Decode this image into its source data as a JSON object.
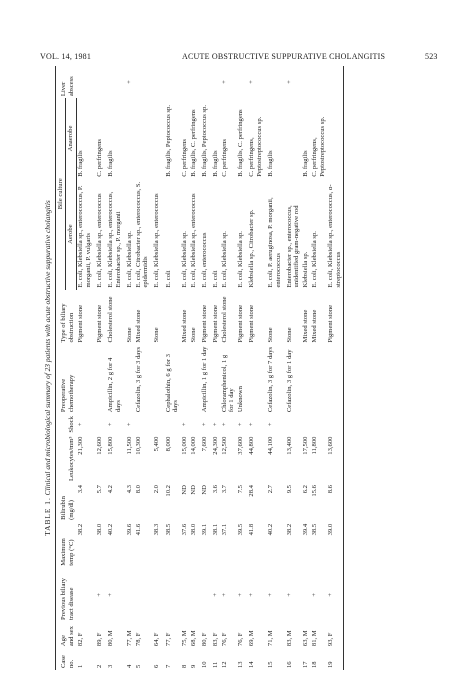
{
  "header": {
    "left": "VOL. 14, 1981",
    "center": "ACUTE OBSTRUCTIVE SUPPURATIVE CHOLANGITIS",
    "page": "523"
  },
  "table": {
    "label": "TABLE 1.",
    "title": "Clinical and microbiological summary of 23 patients with acute obstructive suppurative cholangitis",
    "columns": {
      "case": "Case no.",
      "age_sex": "Age and sex",
      "previous": "Previous biliary tract disease",
      "temp": "Maximum temp (°C)",
      "bili": "Bilirubin (mg/dl)",
      "leuko": "Leukocytes/mm³",
      "shock": "Shock",
      "chemo": "Preoperative chemotherapy",
      "obstruction": "Type of biliary obstruction",
      "bile_culture": "Bile culture",
      "aerobe": "Aerobe",
      "anaerobe": "Anaerobe",
      "liver": "Liver abscess"
    },
    "rows": [
      {
        "case": "1",
        "age": "82, F",
        "prev": "",
        "temp": "38.2",
        "bili": "3.4",
        "leuko": "21,300",
        "shock": "+",
        "chemo": "",
        "obs": "Pigment stone",
        "aerobe": "E. coli, Klebsiella sp., enterococcus, P. morganii, P. vulgaris",
        "anaerobe": "B. fragilis",
        "liver": ""
      },
      {
        "case": "2",
        "age": "89, F",
        "prev": "+",
        "temp": "38.0",
        "bili": "5.7",
        "leuko": "12,600",
        "shock": "",
        "chemo": "",
        "obs": "Pigment stone",
        "aerobe": "E. coli, Klebsiella sp., enterococcus",
        "anaerobe": "C. perfringens",
        "liver": ""
      },
      {
        "case": "3",
        "age": "80, M",
        "prev": "+",
        "temp": "40.2",
        "bili": "4.2",
        "leuko": "15,800",
        "shock": "+",
        "chemo": "Ampicillin, 2 g for 4 days",
        "obs": "Cholesterol stone",
        "aerobe": "E. coli, Klebsiella sp., enterococcus, Enterobacter sp., P. morganii",
        "anaerobe": "B. fragilis",
        "liver": ""
      },
      {
        "case": "4",
        "age": "77, M",
        "prev": "",
        "temp": "39.6",
        "bili": "4.3",
        "leuko": "11,500",
        "shock": "+",
        "chemo": "",
        "obs": "Stone",
        "aerobe": "E. coli, Klebsiella sp.",
        "anaerobe": "",
        "liver": "+"
      },
      {
        "case": "5",
        "age": "78, F",
        "prev": "",
        "temp": "41.6",
        "bili": "8.0",
        "leuko": "10,300",
        "shock": "",
        "chemo": "Cefazolin, 3 g for 3 days",
        "obs": "Mixed stone",
        "aerobe": "E. coli, Citrobacter sp., enterococcus, S. epidermidis",
        "anaerobe": "",
        "liver": ""
      },
      {
        "case": "6",
        "age": "64, F",
        "prev": "",
        "temp": "38.3",
        "bili": "2.0",
        "leuko": "5,400",
        "shock": "",
        "chemo": "",
        "obs": "Stone",
        "aerobe": "E. coli, Klebsiella sp., enterococcus",
        "anaerobe": "",
        "liver": ""
      },
      {
        "case": "7",
        "age": "77, F",
        "prev": "",
        "temp": "38.5",
        "bili": "10.2",
        "leuko": "8,000",
        "shock": "",
        "chemo": "Cephalothin, 6 g for 3 days",
        "obs": "",
        "aerobe": "E. coli",
        "anaerobe": "B. fragilis, Peptococcus sp.",
        "liver": ""
      },
      {
        "case": "8",
        "age": "75, M",
        "prev": "",
        "temp": "37.6",
        "bili": "ND",
        "leuko": "15,000",
        "shock": "+",
        "chemo": "",
        "obs": "Mixed stone",
        "aerobe": "E. coli, Klebsiella sp.",
        "anaerobe": "C. perfringens",
        "liver": ""
      },
      {
        "case": "9",
        "age": "68, M",
        "prev": "",
        "temp": "38.0",
        "bili": "ND",
        "leuko": "14,000",
        "shock": "",
        "chemo": "",
        "obs": "Stone",
        "aerobe": "E. coli, Klebsiella sp., enterococcus",
        "anaerobe": "B. fragilis, C. perfringens",
        "liver": ""
      },
      {
        "case": "10",
        "age": "80, F",
        "prev": "",
        "temp": "39.1",
        "bili": "ND",
        "leuko": "7,600",
        "shock": "+",
        "chemo": "Ampicillin, 1 g for 1 day",
        "obs": "Pigment stone",
        "aerobe": "E. coli, enterococcus",
        "anaerobe": "B. fragilis, Peptococcus sp.",
        "liver": ""
      },
      {
        "case": "11",
        "age": "83, F",
        "prev": "+",
        "temp": "38.1",
        "bili": "3.6",
        "leuko": "24,300",
        "shock": "+",
        "chemo": "",
        "obs": "Pigment stone",
        "aerobe": "E. coli",
        "anaerobe": "B. fragilis",
        "liver": ""
      },
      {
        "case": "12",
        "age": "76, F",
        "prev": "+",
        "temp": "37.1",
        "bili": "3.7",
        "leuko": "12,500",
        "shock": "+",
        "chemo": "Chloramphenicol, 1 g for 1 day",
        "obs": "Cholesterol stone",
        "aerobe": "E. coli, Klebsiella sp.",
        "anaerobe": "C. perfringens",
        "liver": "+"
      },
      {
        "case": "13",
        "age": "76, F",
        "prev": "+",
        "temp": "39.5",
        "bili": "7.5",
        "leuko": "37,600",
        "shock": "+",
        "chemo": "Unknown",
        "obs": "Pigment stone",
        "aerobe": "E. coli, Klebsiella sp.",
        "anaerobe": "B. fragilis, C. perfringens",
        "liver": ""
      },
      {
        "case": "14",
        "age": "69, M",
        "prev": "+",
        "temp": "41.8",
        "bili": "28.4",
        "leuko": "44,800",
        "shock": "+",
        "chemo": "",
        "obs": "Pigment stone",
        "aerobe": "Klebsiella sp., Citrobacter sp.",
        "anaerobe": "C. perfringens, Peptostreptococcus sp.",
        "liver": "+"
      },
      {
        "case": "15",
        "age": "71, M",
        "prev": "+",
        "temp": "40.2",
        "bili": "2.7",
        "leuko": "44,100",
        "shock": "+",
        "chemo": "Cefazolin, 3 g for 7 days",
        "obs": "Stone",
        "aerobe": "E. coli, P. aeruginosa, P. morganii, enterococcus",
        "anaerobe": "B. fragilis",
        "liver": ""
      },
      {
        "case": "16",
        "age": "83, M",
        "prev": "+",
        "temp": "38.2",
        "bili": "9.5",
        "leuko": "13,400",
        "shock": "",
        "chemo": "Cefazolin, 3 g for 1 day",
        "obs": "Stone",
        "aerobe": "Enterobacter sp., enterococcus, unidentified gram-negative rod",
        "anaerobe": "",
        "liver": "+"
      },
      {
        "case": "17",
        "age": "63, M",
        "prev": "",
        "temp": "39.4",
        "bili": "6.2",
        "leuko": "17,500",
        "shock": "",
        "chemo": "",
        "obs": "Mixed stone",
        "aerobe": "Klebsiella sp.",
        "anaerobe": "B. fragilis",
        "liver": ""
      },
      {
        "case": "18",
        "age": "81, M",
        "prev": "+",
        "temp": "38.5",
        "bili": "15.6",
        "leuko": "11,800",
        "shock": "",
        "chemo": "",
        "obs": "Mixed stone",
        "aerobe": "E. coli, Klebsiella sp.",
        "anaerobe": "C. perfringens, Peptostreptococcus sp.",
        "liver": ""
      },
      {
        "case": "19",
        "age": "93, F",
        "prev": "+",
        "temp": "39.0",
        "bili": "8.6",
        "leuko": "13,600",
        "shock": "",
        "chemo": "",
        "obs": "Pigment stone",
        "aerobe": "E. coli, Klebsiella sp., enterococcus, α-streptococcus",
        "anaerobe": "",
        "liver": ""
      }
    ]
  }
}
